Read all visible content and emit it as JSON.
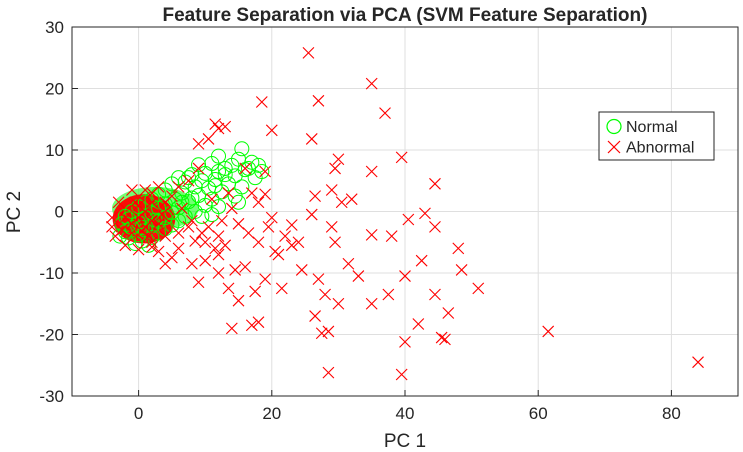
{
  "chart_data": {
    "type": "scatter",
    "title": "Feature Separation via PCA (SVM Feature Separation)",
    "xlabel": "PC 1",
    "ylabel": "PC 2",
    "xlim": [
      -10,
      90
    ],
    "ylim": [
      -30,
      30
    ],
    "xticks": [
      0,
      20,
      40,
      60,
      80
    ],
    "yticks": [
      -30,
      -20,
      -10,
      0,
      10,
      20,
      30
    ],
    "grid": true,
    "legend_position": "top-right",
    "series": [
      {
        "name": "Normal",
        "marker": "circle",
        "color": "#00ff00",
        "points": [
          [
            15.5,
            10.2
          ],
          [
            12,
            9
          ],
          [
            15,
            8.5
          ],
          [
            17,
            8
          ],
          [
            14,
            7.5
          ],
          [
            11,
            7.8
          ],
          [
            9,
            7.6
          ],
          [
            13,
            7
          ],
          [
            16,
            6.8
          ],
          [
            18.5,
            6.5
          ],
          [
            10,
            6.2
          ],
          [
            12,
            6.5
          ],
          [
            8,
            6
          ],
          [
            14.5,
            5.8
          ],
          [
            17.5,
            5.5
          ],
          [
            6,
            5.5
          ],
          [
            9.5,
            5
          ],
          [
            11.5,
            5.2
          ],
          [
            7,
            4.8
          ],
          [
            13.5,
            4.5
          ],
          [
            15.5,
            4
          ],
          [
            5,
            4.5
          ],
          [
            8.5,
            4
          ],
          [
            10.5,
            3.8
          ],
          [
            12.5,
            3.2
          ],
          [
            15,
            1.5
          ],
          [
            14.5,
            2.5
          ],
          [
            4,
            3.5
          ],
          [
            6.5,
            3
          ],
          [
            9,
            2.6
          ],
          [
            11,
            2
          ],
          [
            3,
            2.8
          ],
          [
            5.5,
            2
          ],
          [
            7.5,
            1.6
          ],
          [
            10,
            1
          ],
          [
            12,
            0.8
          ],
          [
            2,
            2
          ],
          [
            4,
            1.2
          ],
          [
            6,
            0.6
          ],
          [
            8.5,
            0
          ],
          [
            9.5,
            -0.8
          ],
          [
            11,
            -0.5
          ],
          [
            1,
            1.5
          ],
          [
            3,
            0.5
          ],
          [
            5,
            -0.2
          ],
          [
            7,
            -0.8
          ],
          [
            0,
            0.8
          ],
          [
            2,
            -0.3
          ],
          [
            4,
            -1
          ],
          [
            6,
            -1.5
          ],
          [
            -1,
            0
          ],
          [
            1,
            -1
          ],
          [
            3,
            -1.6
          ],
          [
            5,
            -2.2
          ],
          [
            -2,
            -0.8
          ],
          [
            0,
            -1.8
          ],
          [
            2,
            -2.3
          ],
          [
            4,
            -2.8
          ],
          [
            -2.5,
            -2
          ],
          [
            -1,
            -2.6
          ],
          [
            1,
            -3
          ],
          [
            3,
            -3.5
          ],
          [
            -2,
            -3.3
          ],
          [
            0,
            -3.8
          ],
          [
            2,
            -4.2
          ],
          [
            -1.5,
            -4.3
          ],
          [
            0.5,
            -4.8
          ],
          [
            -2.8,
            -4
          ],
          [
            -0.5,
            -5.2
          ],
          [
            1.5,
            -5.5
          ],
          [
            -1.5,
            -1.2
          ],
          [
            0.5,
            -2.6
          ],
          [
            2.5,
            -1.4
          ],
          [
            13,
            6
          ],
          [
            16.5,
            7
          ],
          [
            7.5,
            5.5
          ],
          [
            6.5,
            1.5
          ],
          [
            18,
            7.5
          ],
          [
            11.5,
            4.2
          ],
          [
            8,
            2.2
          ]
        ]
      },
      {
        "name": "Abnormal",
        "marker": "x",
        "color": "#ff0000",
        "points": [
          [
            25.5,
            25.8
          ],
          [
            35,
            20.8
          ],
          [
            18.5,
            17.8
          ],
          [
            27,
            18
          ],
          [
            37,
            16
          ],
          [
            20,
            13.2
          ],
          [
            11.5,
            14.2
          ],
          [
            12,
            13.5
          ],
          [
            10.5,
            11.8
          ],
          [
            13,
            13.8
          ],
          [
            9,
            11
          ],
          [
            26,
            11.8
          ],
          [
            39.5,
            8.8
          ],
          [
            30,
            8.5
          ],
          [
            29.5,
            7
          ],
          [
            35,
            6.5
          ],
          [
            16,
            7
          ],
          [
            19,
            6.5
          ],
          [
            44.5,
            4.5
          ],
          [
            29,
            3.5
          ],
          [
            32,
            2
          ],
          [
            17,
            3
          ],
          [
            19,
            2.8
          ],
          [
            26.5,
            2.5
          ],
          [
            30.5,
            1.5
          ],
          [
            26,
            -0.5
          ],
          [
            18,
            1.5
          ],
          [
            14,
            0.5
          ],
          [
            20,
            -1
          ],
          [
            23,
            -2.2
          ],
          [
            29,
            -2.5
          ],
          [
            35,
            -3.8
          ],
          [
            40.5,
            -1.3
          ],
          [
            43,
            -0.3
          ],
          [
            44.5,
            -2.5
          ],
          [
            48,
            -6
          ],
          [
            48.5,
            -9.5
          ],
          [
            51,
            -12.5
          ],
          [
            40,
            -10.5
          ],
          [
            44.5,
            -13.5
          ],
          [
            42,
            -18.3
          ],
          [
            35,
            -15
          ],
          [
            45.5,
            -20.5
          ],
          [
            46,
            -20.8
          ],
          [
            40,
            -21.2
          ],
          [
            39.5,
            -26.5
          ],
          [
            61.5,
            -19.5
          ],
          [
            84,
            -24.5
          ],
          [
            29.5,
            -5
          ],
          [
            23,
            -5.5
          ],
          [
            20.5,
            -6.5
          ],
          [
            24.5,
            -9.5
          ],
          [
            27,
            -11
          ],
          [
            28,
            -13.5
          ],
          [
            30,
            -15
          ],
          [
            26.5,
            -17
          ],
          [
            28.5,
            -19.5
          ],
          [
            27.5,
            -19.8
          ],
          [
            28.5,
            -26.2
          ],
          [
            17,
            -18.5
          ],
          [
            18,
            -18
          ],
          [
            14,
            -19
          ],
          [
            17.5,
            -13
          ],
          [
            19,
            -11
          ],
          [
            15,
            -14.5
          ],
          [
            13.5,
            -12.5
          ],
          [
            12,
            -10
          ],
          [
            14.5,
            -9.5
          ],
          [
            9,
            -11.5
          ],
          [
            12,
            -7
          ],
          [
            10,
            -8
          ],
          [
            8,
            -8.5
          ],
          [
            6,
            -6
          ],
          [
            4,
            -8.5
          ],
          [
            2,
            -5
          ],
          [
            4,
            -4
          ],
          [
            6,
            -3.5
          ],
          [
            8.5,
            -4.8
          ],
          [
            10,
            -5
          ],
          [
            12,
            -4
          ],
          [
            7.5,
            5
          ],
          [
            9,
            7
          ],
          [
            11,
            2
          ],
          [
            12.5,
            -1.5
          ],
          [
            15,
            -2
          ],
          [
            16.5,
            -3.5
          ],
          [
            18,
            -5
          ],
          [
            19.5,
            -2.5
          ],
          [
            21,
            -7
          ],
          [
            22,
            -4
          ],
          [
            5,
            2.5
          ],
          [
            6,
            4
          ],
          [
            8,
            -1.5
          ],
          [
            10.5,
            -2.5
          ],
          [
            13.5,
            3
          ],
          [
            3,
            4
          ],
          [
            2,
            3
          ],
          [
            -1,
            3.5
          ],
          [
            -3,
            1.5
          ],
          [
            -4,
            -1
          ],
          [
            -4,
            -2.5
          ],
          [
            -3.5,
            -4
          ],
          [
            -2,
            -5.5
          ],
          [
            0,
            -6.2
          ],
          [
            2,
            -5.8
          ],
          [
            3,
            -6.5
          ],
          [
            5,
            -7.5
          ],
          [
            1,
            3.5
          ],
          [
            4,
            1.5
          ],
          [
            6.5,
            0.5
          ],
          [
            7.5,
            -2.5
          ],
          [
            9.5,
            -3.5
          ],
          [
            11.5,
            -6
          ],
          [
            13,
            -5.5
          ],
          [
            16,
            -9
          ],
          [
            1,
            0
          ],
          [
            0,
            -1
          ],
          [
            2,
            -1.5
          ],
          [
            -1,
            -2
          ],
          [
            1,
            -2.5
          ],
          [
            3,
            -2
          ],
          [
            -2,
            -1
          ],
          [
            0,
            1
          ],
          [
            2,
            1.5
          ],
          [
            3.5,
            -0.5
          ],
          [
            -1,
            -3.5
          ],
          [
            1.5,
            -4
          ],
          [
            -2.5,
            -3
          ],
          [
            0.5,
            -3.2
          ],
          [
            -0.5,
            1.5
          ],
          [
            24,
            -5
          ],
          [
            21.5,
            -12.5
          ],
          [
            33,
            -10.5
          ],
          [
            38,
            -4
          ],
          [
            31.5,
            -8.5
          ],
          [
            42.5,
            -8
          ],
          [
            37.5,
            -13.5
          ],
          [
            46.5,
            -16.5
          ]
        ]
      }
    ]
  }
}
